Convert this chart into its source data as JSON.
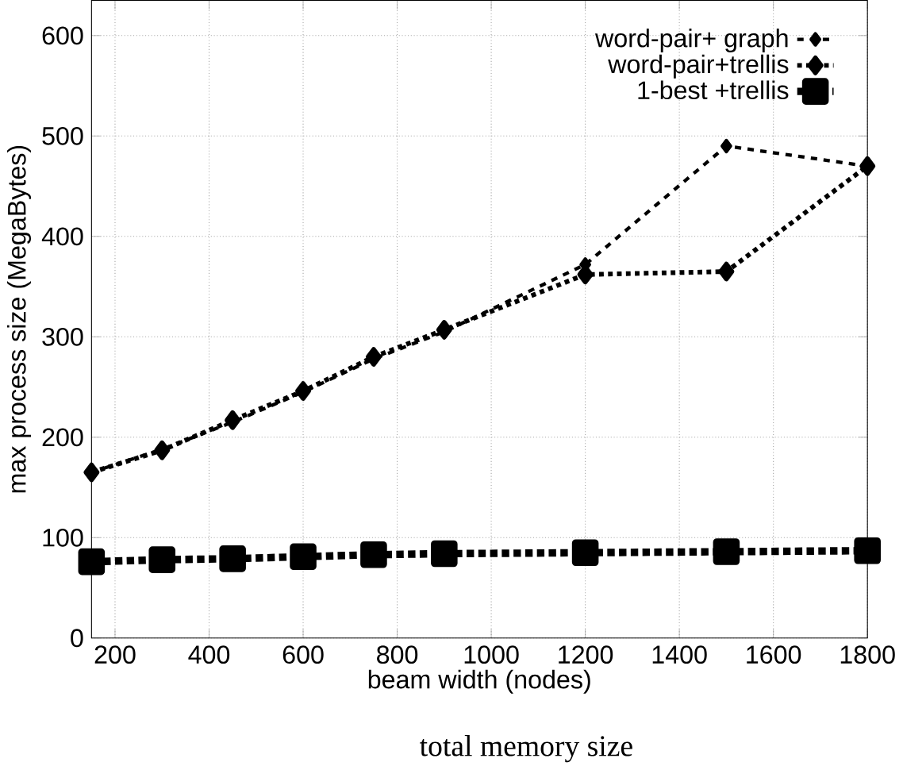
{
  "chart_data": {
    "type": "line",
    "xlabel": "beam width (nodes)",
    "ylabel": "max process size (MegaBytes)",
    "annotations": [
      "total memory size"
    ],
    "x": [
      150,
      300,
      450,
      600,
      750,
      900,
      1200,
      1500,
      1800
    ],
    "xlim": [
      150,
      1800
    ],
    "ylim": [
      0,
      635
    ],
    "xticks": [
      200,
      400,
      600,
      800,
      1000,
      1200,
      1400,
      1600,
      1800
    ],
    "yticks": [
      0,
      100,
      200,
      300,
      400,
      500,
      600
    ],
    "grid": true,
    "legend": "top right",
    "series": [
      {
        "name": "word-pair+ graph",
        "color": "#000000",
        "marker": "diamond",
        "line_style": "dashed",
        "values": [
          165,
          188,
          215,
          245,
          278,
          305,
          372,
          490,
          470
        ]
      },
      {
        "name": "word-pair+trellis",
        "color": "#000000",
        "marker": "diamond",
        "line_style": "dotted",
        "values": [
          165,
          187,
          217,
          246,
          280,
          307,
          362,
          365,
          470
        ]
      },
      {
        "name": "1-best +trellis",
        "color": "#000000",
        "marker": "square",
        "line_style": "dotted",
        "values": [
          76,
          78,
          79,
          81,
          83,
          84,
          85,
          86,
          87
        ]
      }
    ]
  }
}
